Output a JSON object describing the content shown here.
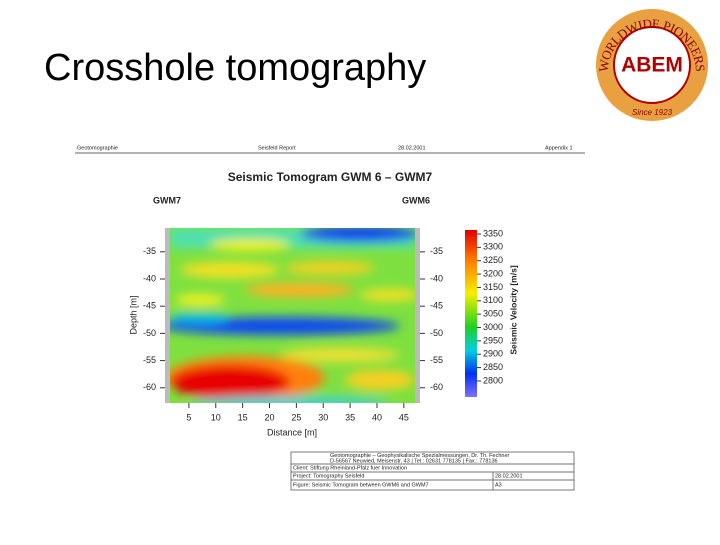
{
  "slide": {
    "title": "Crosshole tomography",
    "logo": {
      "name": "ABEM",
      "ring": "WORLDWIDE PIONEERS IN GEOPHYSICS",
      "since": "Since 1923"
    }
  },
  "report": {
    "header": [
      "Geotomographie",
      "Seisfeld Report",
      "28.02.2001",
      "Appendix 1"
    ],
    "figure": {
      "title": "Seismic Tomogram GWM 6 – GWM7",
      "left_well": "GWM7",
      "right_well": "GWM6",
      "x_label": "Distance [m]",
      "y_label": "Depth [m]",
      "colorbar_label": "Seismic Velocity [m/s]",
      "xlim": [
        1,
        47
      ],
      "xticks": [
        5,
        10,
        15,
        20,
        25,
        30,
        35,
        40,
        45
      ],
      "ylim": [
        -30,
        -63
      ],
      "yticks": [
        -35,
        -40,
        -45,
        -50,
        -55,
        -60
      ],
      "clim": [
        2740,
        3365
      ],
      "cticks": [
        3350,
        3300,
        3250,
        3200,
        3150,
        3100,
        3050,
        3000,
        2950,
        2900,
        2850,
        2800
      ]
    },
    "info": {
      "company": "Geotomographie – Geophysikalische Spezialmessungen, Dr. Th. Fechner",
      "address": "D-56567 Neuwied, Meisenstr. 43  |  Tel.: 02631 778135  |  Fax.: 778136",
      "client": "Client: Stiftung Rheinland-Pfalz fuer Innovation",
      "project": "Project: Tomography Seisfeld",
      "date": "28.02.2001",
      "figure": "Figure: Seismic Tomogram between GWM6 and GWM7",
      "sheet": "A3"
    }
  }
}
